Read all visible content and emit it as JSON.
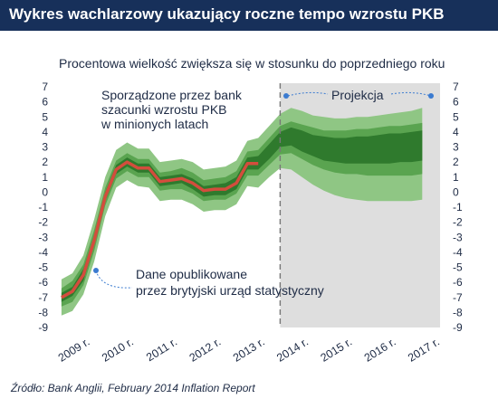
{
  "title": "Wykres wachlarzowy ukazujący roczne tempo wzrostu PKB",
  "source": "Źródło: Bank Anglii, February 2014 Inflation Report",
  "colors": {
    "title_bg": "#17305a",
    "band_light": "#8fc684",
    "band_mid": "#5aa450",
    "band_dark": "#2f7a2d",
    "central_line": "#d34d3d",
    "projection_bg": "#dedede",
    "dashed_line": "#777777",
    "annotation_dot": "#3b7bd0"
  },
  "chart_data": {
    "type": "area",
    "subtitle": "Procentowa wielkość zwiększa się w stosunku do poprzedniego roku",
    "ylim": [
      -9,
      7
    ],
    "yticks": [
      7,
      6,
      5,
      4,
      3,
      2,
      1,
      0,
      -1,
      -2,
      -3,
      -4,
      -5,
      -6,
      -7,
      -8,
      -9
    ],
    "xlim": [
      2009.0,
      2017.2
    ],
    "xticks": [
      {
        "label": "2009 r.",
        "x": 2009.0
      },
      {
        "label": "2010 r.",
        "x": 2010.0
      },
      {
        "label": "2011 r.",
        "x": 2011.0
      },
      {
        "label": "2012 r.",
        "x": 2012.0
      },
      {
        "label": "2013 r.",
        "x": 2013.0
      },
      {
        "label": "2014 r.",
        "x": 2014.0
      },
      {
        "label": "2015 r.",
        "x": 2015.0
      },
      {
        "label": "2016 r.",
        "x": 2016.0
      },
      {
        "label": "2017 r.",
        "x": 2017.0
      }
    ],
    "projection_start": 2013.75,
    "grid": false,
    "x": [
      2008.75,
      2009.0,
      2009.25,
      2009.5,
      2009.75,
      2010.0,
      2010.25,
      2010.5,
      2010.75,
      2011.0,
      2011.25,
      2011.5,
      2011.75,
      2012.0,
      2012.25,
      2012.5,
      2012.75,
      2013.0,
      2013.25,
      2013.5,
      2013.75,
      2014.0,
      2014.25,
      2014.5,
      2014.75,
      2015.0,
      2015.25,
      2015.5,
      2015.75,
      2016.0,
      2016.25,
      2016.5,
      2016.75,
      2017.0
    ],
    "central": [
      -7.0,
      -6.6,
      -5.5,
      -3.2,
      -0.3,
      1.5,
      2.0,
      1.6,
      1.6,
      0.7,
      0.8,
      0.9,
      0.6,
      0.1,
      0.2,
      0.2,
      0.6,
      1.9,
      1.9,
      2.7,
      3.5,
      3.7,
      3.4,
      3.1,
      2.9,
      2.8,
      2.8,
      2.8,
      2.8,
      2.8,
      2.9,
      2.9,
      3.0,
      3.1
    ],
    "bands": [
      {
        "lower": [
          -8.2,
          -7.9,
          -6.8,
          -4.6,
          -1.6,
          0.3,
          0.8,
          0.4,
          0.3,
          -0.6,
          -0.5,
          -0.5,
          -0.8,
          -1.3,
          -1.2,
          -1.2,
          -0.8,
          0.4,
          0.3,
          1.0,
          1.6,
          1.5,
          1.0,
          0.5,
          0.1,
          -0.2,
          -0.4,
          -0.5,
          -0.6,
          -0.6,
          -0.6,
          -0.6,
          -0.6,
          -0.5
        ],
        "upper": [
          -5.8,
          -5.4,
          -4.2,
          -1.8,
          1.0,
          2.8,
          3.3,
          2.9,
          2.9,
          2.0,
          2.1,
          2.2,
          2.0,
          1.5,
          1.6,
          1.7,
          2.1,
          3.4,
          3.6,
          4.4,
          5.2,
          5.6,
          5.4,
          5.1,
          5.0,
          4.9,
          4.9,
          5.0,
          5.0,
          5.1,
          5.2,
          5.3,
          5.4,
          5.6
        ]
      },
      {
        "lower": [
          -7.6,
          -7.3,
          -6.2,
          -3.9,
          -0.9,
          0.9,
          1.4,
          1.0,
          1.0,
          0.1,
          0.2,
          0.2,
          -0.1,
          -0.6,
          -0.5,
          -0.5,
          -0.1,
          1.1,
          1.1,
          1.8,
          2.5,
          2.6,
          2.2,
          1.8,
          1.5,
          1.3,
          1.2,
          1.2,
          1.1,
          1.1,
          1.1,
          1.1,
          1.1,
          1.2
        ],
        "upper": [
          -6.4,
          -5.9,
          -4.8,
          -2.5,
          0.3,
          2.1,
          2.6,
          2.2,
          2.2,
          1.3,
          1.4,
          1.6,
          1.3,
          0.8,
          0.9,
          1.0,
          1.4,
          2.7,
          2.8,
          3.6,
          4.4,
          4.7,
          4.5,
          4.3,
          4.1,
          4.1,
          4.1,
          4.2,
          4.2,
          4.3,
          4.4,
          4.4,
          4.5,
          4.6
        ]
      },
      {
        "lower": [
          -7.3,
          -6.9,
          -5.9,
          -3.5,
          -0.6,
          1.2,
          1.7,
          1.3,
          1.3,
          0.4,
          0.5,
          0.6,
          0.2,
          -0.3,
          -0.2,
          -0.2,
          0.2,
          1.5,
          1.5,
          2.2,
          3.0,
          3.1,
          2.7,
          2.4,
          2.1,
          2.0,
          1.9,
          1.9,
          1.9,
          1.9,
          1.9,
          2.0,
          2.0,
          2.1
        ],
        "upper": [
          -6.7,
          -6.3,
          -5.1,
          -2.9,
          0.0,
          1.8,
          2.3,
          1.9,
          1.9,
          1.0,
          1.1,
          1.2,
          0.9,
          0.4,
          0.5,
          0.6,
          1.0,
          2.3,
          2.4,
          3.2,
          4.0,
          4.3,
          4.1,
          3.8,
          3.7,
          3.6,
          3.6,
          3.7,
          3.7,
          3.8,
          3.9,
          3.9,
          4.0,
          4.1
        ]
      }
    ],
    "annotations": {
      "estimates": "Sporządzone przez bank\nszacunki wzrostu PKB\nw minionych latach",
      "projection": "Projekcja",
      "published": "Dane opublikowane\nprzez brytyjski urząd statystyczny"
    }
  }
}
